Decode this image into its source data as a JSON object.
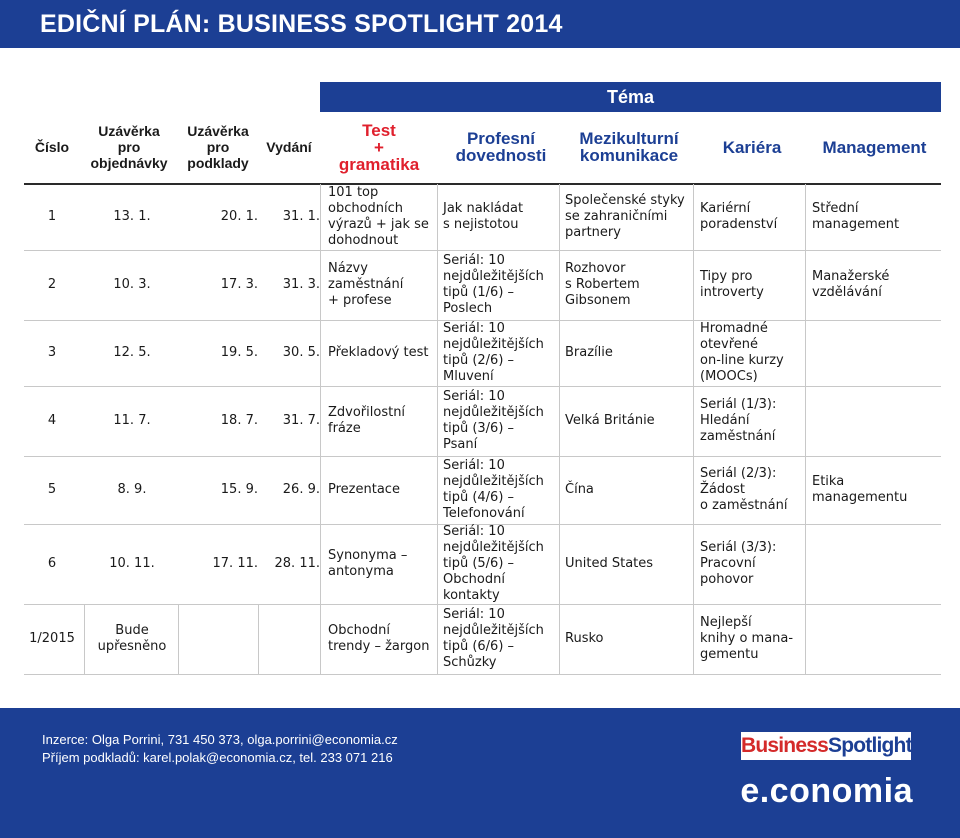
{
  "title": "EDIČNÍ PLÁN: BUSINESS SPOTLIGHT 2014",
  "tema": "Téma",
  "headers": {
    "cislo": "Číslo",
    "uzaverka_objednavky": [
      "Uzávěrka",
      "pro",
      "objednávky"
    ],
    "uzaverka_podklady": [
      "Uzávěrka",
      "pro",
      "podklady"
    ],
    "vydani": "Vydání",
    "test": [
      "Test",
      "+",
      "gramatika"
    ],
    "profesni": [
      "Profesní",
      "dovednosti"
    ],
    "mezikulturni": [
      "Mezikulturní",
      "komunikace"
    ],
    "kariera": "Kariéra",
    "management": "Management"
  },
  "rows": [
    {
      "cislo": "1",
      "obj": "13. 1.",
      "podklady": "20. 1.",
      "vydani": "31. 1.",
      "test": [
        "101 top",
        "obchodních",
        "výrazů + jak se",
        "dohodnout"
      ],
      "profesni": [
        "Jak nakládat",
        "s nejistotou"
      ],
      "mezikulturni": [
        "Společenské styky",
        "se zahraničními",
        "partnery"
      ],
      "kariera": [
        "Kariérní",
        "poradenství"
      ],
      "management": [
        "Střední",
        "management"
      ]
    },
    {
      "cislo": "2",
      "obj": "10. 3.",
      "podklady": "17. 3.",
      "vydani": "31. 3.",
      "test": [
        "Názvy",
        "zaměstnání",
        "+ profese"
      ],
      "profesni": [
        "Seriál: 10",
        "nejdůležitějších",
        "tipů (1/6) –",
        "Poslech"
      ],
      "mezikulturni": [
        "Rozhovor",
        "s Robertem",
        "Gibsonem"
      ],
      "kariera": [
        "Tipy pro",
        "introverty"
      ],
      "management": [
        "Manažerské",
        "vzdělávání"
      ]
    },
    {
      "cislo": "3",
      "obj": "12. 5.",
      "podklady": "19. 5.",
      "vydani": "30. 5.",
      "test": [
        "Překladový test"
      ],
      "profesni": [
        "Seriál: 10",
        "nejdůležitějších",
        "tipů (2/6) –",
        "Mluvení"
      ],
      "mezikulturni": [
        "Brazílie"
      ],
      "kariera": [
        "Hromadné",
        "otevřené",
        "on-line kurzy",
        "(MOOCs)"
      ],
      "management": []
    },
    {
      "cislo": "4",
      "obj": "11. 7.",
      "podklady": "18. 7.",
      "vydani": "31. 7.",
      "test": [
        "Zdvořilostní",
        "fráze"
      ],
      "profesni": [
        "Seriál: 10",
        "nejdůležitějších",
        "tipů (3/6) –",
        "Psaní"
      ],
      "mezikulturni": [
        "Velká Británie"
      ],
      "kariera": [
        "Seriál (1/3):",
        "Hledání",
        "zaměstnání"
      ],
      "management": []
    },
    {
      "cislo": "5",
      "obj": "8. 9.",
      "podklady": "15. 9.",
      "vydani": "26. 9.",
      "test": [
        "Prezentace"
      ],
      "profesni": [
        "Seriál: 10",
        "nejdůležitějších",
        "tipů (4/6) –",
        "Telefonování"
      ],
      "mezikulturni": [
        "Čína"
      ],
      "kariera": [
        "Seriál (2/3):",
        "Žádost",
        "o zaměstnání"
      ],
      "management": [
        "Etika",
        "managementu"
      ]
    },
    {
      "cislo": "6",
      "obj": "10. 11.",
      "podklady": "17. 11.",
      "vydani": "28. 11.",
      "test": [
        "Synonyma –",
        "antonyma"
      ],
      "profesni": [
        "Seriál: 10",
        "nejdůležitějších",
        "tipů (5/6) –",
        "Obchodní",
        "kontakty"
      ],
      "mezikulturni": [
        "United States"
      ],
      "kariera": [
        "Seriál (3/3):",
        "Pracovní",
        "pohovor"
      ],
      "management": []
    },
    {
      "cislo": "1/2015",
      "obj": [
        "Bude",
        "upřesněno"
      ],
      "podklady": "",
      "vydani": "",
      "test": [
        "Obchodní",
        "trendy – žargon"
      ],
      "profesni": [
        "Seriál: 10",
        "nejdůležitějších",
        "tipů (6/6) –",
        "Schůzky"
      ],
      "mezikulturni": [
        "Rusko"
      ],
      "kariera": [
        "Nejlepší",
        "knihy o mana-",
        "gementu"
      ],
      "management": []
    }
  ],
  "footer": {
    "inzerce": "Inzerce: Olga Porrini, 731 450 373, olga.porrini@economia.cz",
    "prijem": "Příjem podkladů: karel.polak@economia.cz, tel. 233 071 216"
  },
  "logos": {
    "business_spotlight_part1": "Business",
    "business_spotlight_part2": "Spotlight",
    "economia": "e.conomia"
  },
  "colors": {
    "brand_blue": "#1c3f94",
    "accent_red": "#e0202d"
  }
}
